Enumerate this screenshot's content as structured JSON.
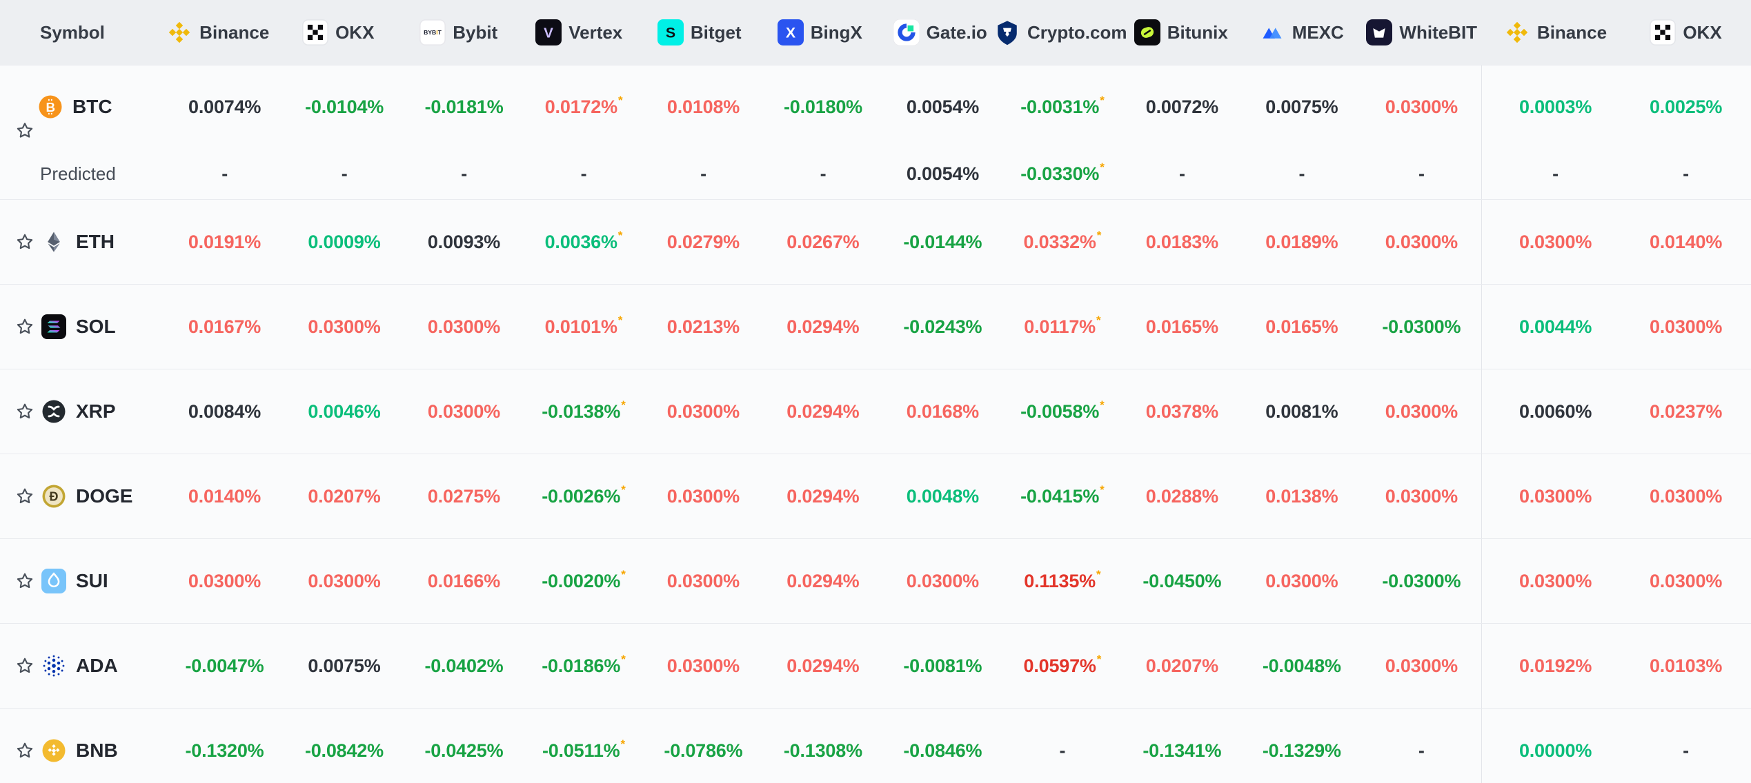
{
  "header": {
    "symbol_label": "Symbol",
    "exchanges": [
      {
        "label": "Binance",
        "icon": "binance"
      },
      {
        "label": "OKX",
        "icon": "okx"
      },
      {
        "label": "Bybit",
        "icon": "bybit"
      },
      {
        "label": "Vertex",
        "icon": "vertex"
      },
      {
        "label": "Bitget",
        "icon": "bitget"
      },
      {
        "label": "BingX",
        "icon": "bingx"
      },
      {
        "label": "Gate.io",
        "icon": "gateio"
      },
      {
        "label": "Crypto.com",
        "icon": "cryptocom"
      },
      {
        "label": "Bitunix",
        "icon": "bitunix"
      },
      {
        "label": "MEXC",
        "icon": "mexc"
      },
      {
        "label": "WhiteBIT",
        "icon": "whitebit"
      }
    ],
    "pinned_exchanges": [
      {
        "label": "Binance",
        "icon": "binance"
      },
      {
        "label": "OKX",
        "icon": "okx"
      }
    ]
  },
  "colors": {
    "header_bg": "#EDEFF2",
    "row_bg": "#FAFBFC",
    "divider": "#E3E5EA",
    "positive_red": "#F6655F",
    "strong_red": "#E3362B",
    "negative_green": "#18A344",
    "small_positive_teal": "#0BBE7B",
    "neutral_dark": "#2F343C",
    "asterisk_orange": "#F7A600"
  },
  "rows": [
    {
      "symbol": "BTC",
      "icon": "btc",
      "favorited": false,
      "values": [
        {
          "v": "0.0074%",
          "c": "dark"
        },
        {
          "v": "-0.0104%",
          "c": "green"
        },
        {
          "v": "-0.0181%",
          "c": "green"
        },
        {
          "v": "0.0172%",
          "c": "red",
          "a": true
        },
        {
          "v": "0.0108%",
          "c": "red"
        },
        {
          "v": "-0.0180%",
          "c": "green"
        },
        {
          "v": "0.0054%",
          "c": "dark"
        },
        {
          "v": "-0.0031%",
          "c": "green",
          "a": true
        },
        {
          "v": "0.0072%",
          "c": "dark"
        },
        {
          "v": "0.0075%",
          "c": "dark"
        },
        {
          "v": "0.0300%",
          "c": "red"
        }
      ],
      "pinned": [
        {
          "v": "0.0003%",
          "c": "teal"
        },
        {
          "v": "0.0025%",
          "c": "teal"
        }
      ],
      "predicted": {
        "label": "Predicted",
        "values": [
          {
            "v": "-",
            "c": "dark"
          },
          {
            "v": "-",
            "c": "dark"
          },
          {
            "v": "-",
            "c": "dark"
          },
          {
            "v": "-",
            "c": "dark"
          },
          {
            "v": "-",
            "c": "dark"
          },
          {
            "v": "-",
            "c": "dark"
          },
          {
            "v": "0.0054%",
            "c": "dark"
          },
          {
            "v": "-0.0330%",
            "c": "green",
            "a": true
          },
          {
            "v": "-",
            "c": "dark"
          },
          {
            "v": "-",
            "c": "dark"
          },
          {
            "v": "-",
            "c": "dark"
          }
        ],
        "pinned": [
          {
            "v": "-",
            "c": "dark"
          },
          {
            "v": "-",
            "c": "dark"
          }
        ]
      }
    },
    {
      "symbol": "ETH",
      "icon": "eth",
      "favorited": false,
      "values": [
        {
          "v": "0.0191%",
          "c": "red"
        },
        {
          "v": "0.0009%",
          "c": "teal"
        },
        {
          "v": "0.0093%",
          "c": "dark"
        },
        {
          "v": "0.0036%",
          "c": "teal",
          "a": true
        },
        {
          "v": "0.0279%",
          "c": "red"
        },
        {
          "v": "0.0267%",
          "c": "red"
        },
        {
          "v": "-0.0144%",
          "c": "green"
        },
        {
          "v": "0.0332%",
          "c": "red",
          "a": true
        },
        {
          "v": "0.0183%",
          "c": "red"
        },
        {
          "v": "0.0189%",
          "c": "red"
        },
        {
          "v": "0.0300%",
          "c": "red"
        }
      ],
      "pinned": [
        {
          "v": "0.0300%",
          "c": "red"
        },
        {
          "v": "0.0140%",
          "c": "red"
        }
      ]
    },
    {
      "symbol": "SOL",
      "icon": "sol",
      "favorited": false,
      "values": [
        {
          "v": "0.0167%",
          "c": "red"
        },
        {
          "v": "0.0300%",
          "c": "red"
        },
        {
          "v": "0.0300%",
          "c": "red"
        },
        {
          "v": "0.0101%",
          "c": "red",
          "a": true
        },
        {
          "v": "0.0213%",
          "c": "red"
        },
        {
          "v": "0.0294%",
          "c": "red"
        },
        {
          "v": "-0.0243%",
          "c": "green"
        },
        {
          "v": "0.0117%",
          "c": "red",
          "a": true
        },
        {
          "v": "0.0165%",
          "c": "red"
        },
        {
          "v": "0.0165%",
          "c": "red"
        },
        {
          "v": "-0.0300%",
          "c": "green"
        }
      ],
      "pinned": [
        {
          "v": "0.0044%",
          "c": "teal"
        },
        {
          "v": "0.0300%",
          "c": "red"
        }
      ]
    },
    {
      "symbol": "XRP",
      "icon": "xrp",
      "favorited": false,
      "values": [
        {
          "v": "0.0084%",
          "c": "dark"
        },
        {
          "v": "0.0046%",
          "c": "teal"
        },
        {
          "v": "0.0300%",
          "c": "red"
        },
        {
          "v": "-0.0138%",
          "c": "green",
          "a": true
        },
        {
          "v": "0.0300%",
          "c": "red"
        },
        {
          "v": "0.0294%",
          "c": "red"
        },
        {
          "v": "0.0168%",
          "c": "red"
        },
        {
          "v": "-0.0058%",
          "c": "green",
          "a": true
        },
        {
          "v": "0.0378%",
          "c": "red"
        },
        {
          "v": "0.0081%",
          "c": "dark"
        },
        {
          "v": "0.0300%",
          "c": "red"
        }
      ],
      "pinned": [
        {
          "v": "0.0060%",
          "c": "dark"
        },
        {
          "v": "0.0237%",
          "c": "red"
        }
      ]
    },
    {
      "symbol": "DOGE",
      "icon": "doge",
      "favorited": false,
      "values": [
        {
          "v": "0.0140%",
          "c": "red"
        },
        {
          "v": "0.0207%",
          "c": "red"
        },
        {
          "v": "0.0275%",
          "c": "red"
        },
        {
          "v": "-0.0026%",
          "c": "green",
          "a": true
        },
        {
          "v": "0.0300%",
          "c": "red"
        },
        {
          "v": "0.0294%",
          "c": "red"
        },
        {
          "v": "0.0048%",
          "c": "teal"
        },
        {
          "v": "-0.0415%",
          "c": "green",
          "a": true
        },
        {
          "v": "0.0288%",
          "c": "red"
        },
        {
          "v": "0.0138%",
          "c": "red"
        },
        {
          "v": "0.0300%",
          "c": "red"
        }
      ],
      "pinned": [
        {
          "v": "0.0300%",
          "c": "red"
        },
        {
          "v": "0.0300%",
          "c": "red"
        }
      ]
    },
    {
      "symbol": "SUI",
      "icon": "sui",
      "favorited": false,
      "values": [
        {
          "v": "0.0300%",
          "c": "red"
        },
        {
          "v": "0.0300%",
          "c": "red"
        },
        {
          "v": "0.0166%",
          "c": "red"
        },
        {
          "v": "-0.0020%",
          "c": "green",
          "a": true
        },
        {
          "v": "0.0300%",
          "c": "red"
        },
        {
          "v": "0.0294%",
          "c": "red"
        },
        {
          "v": "0.0300%",
          "c": "red"
        },
        {
          "v": "0.1135%",
          "c": "sred",
          "a": true
        },
        {
          "v": "-0.0450%",
          "c": "green"
        },
        {
          "v": "0.0300%",
          "c": "red"
        },
        {
          "v": "-0.0300%",
          "c": "green"
        }
      ],
      "pinned": [
        {
          "v": "0.0300%",
          "c": "red"
        },
        {
          "v": "0.0300%",
          "c": "red"
        }
      ]
    },
    {
      "symbol": "ADA",
      "icon": "ada",
      "favorited": false,
      "values": [
        {
          "v": "-0.0047%",
          "c": "green"
        },
        {
          "v": "0.0075%",
          "c": "dark"
        },
        {
          "v": "-0.0402%",
          "c": "green"
        },
        {
          "v": "-0.0186%",
          "c": "green",
          "a": true
        },
        {
          "v": "0.0300%",
          "c": "red"
        },
        {
          "v": "0.0294%",
          "c": "red"
        },
        {
          "v": "-0.0081%",
          "c": "green"
        },
        {
          "v": "0.0597%",
          "c": "sred",
          "a": true
        },
        {
          "v": "0.0207%",
          "c": "red"
        },
        {
          "v": "-0.0048%",
          "c": "green"
        },
        {
          "v": "0.0300%",
          "c": "red"
        }
      ],
      "pinned": [
        {
          "v": "0.0192%",
          "c": "red"
        },
        {
          "v": "0.0103%",
          "c": "red"
        }
      ]
    },
    {
      "symbol": "BNB",
      "icon": "bnb",
      "favorited": false,
      "values": [
        {
          "v": "-0.1320%",
          "c": "green"
        },
        {
          "v": "-0.0842%",
          "c": "green"
        },
        {
          "v": "-0.0425%",
          "c": "green"
        },
        {
          "v": "-0.0511%",
          "c": "green",
          "a": true
        },
        {
          "v": "-0.0786%",
          "c": "green"
        },
        {
          "v": "-0.1308%",
          "c": "green"
        },
        {
          "v": "-0.0846%",
          "c": "green"
        },
        {
          "v": "-",
          "c": "dark"
        },
        {
          "v": "-0.1341%",
          "c": "green"
        },
        {
          "v": "-0.1329%",
          "c": "green"
        },
        {
          "v": "-",
          "c": "dark"
        }
      ],
      "pinned": [
        {
          "v": "0.0000%",
          "c": "teal"
        },
        {
          "v": "-",
          "c": "dark"
        }
      ]
    }
  ]
}
